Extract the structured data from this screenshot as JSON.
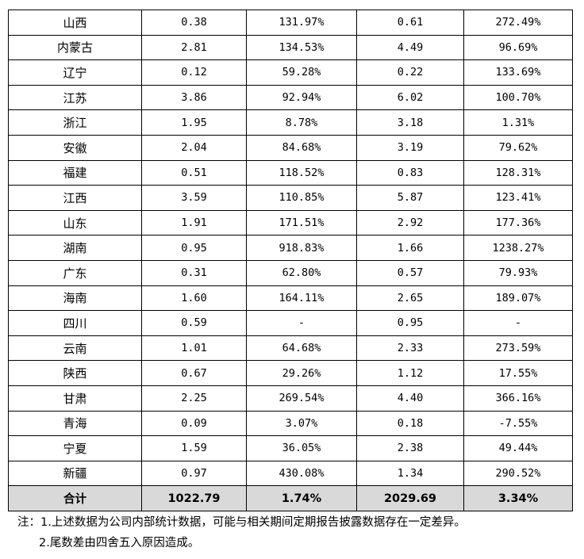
{
  "table": {
    "rows": [
      {
        "region": "山西",
        "c1": "0.38",
        "c2": "131.97%",
        "c3": "0.61",
        "c4": "272.49%"
      },
      {
        "region": "内蒙古",
        "c1": "2.81",
        "c2": "134.53%",
        "c3": "4.49",
        "c4": "96.69%"
      },
      {
        "region": "辽宁",
        "c1": "0.12",
        "c2": "59.28%",
        "c3": "0.22",
        "c4": "133.69%"
      },
      {
        "region": "江苏",
        "c1": "3.86",
        "c2": "92.94%",
        "c3": "6.02",
        "c4": "100.70%"
      },
      {
        "region": "浙江",
        "c1": "1.95",
        "c2": "8.78%",
        "c3": "3.18",
        "c4": "1.31%"
      },
      {
        "region": "安徽",
        "c1": "2.04",
        "c2": "84.68%",
        "c3": "3.19",
        "c4": "79.62%"
      },
      {
        "region": "福建",
        "c1": "0.51",
        "c2": "118.52%",
        "c3": "0.83",
        "c4": "128.31%"
      },
      {
        "region": "江西",
        "c1": "3.59",
        "c2": "110.85%",
        "c3": "5.87",
        "c4": "123.41%"
      },
      {
        "region": "山东",
        "c1": "1.91",
        "c2": "171.51%",
        "c3": "2.92",
        "c4": "177.36%"
      },
      {
        "region": "湖南",
        "c1": "0.95",
        "c2": "918.83%",
        "c3": "1.66",
        "c4": "1238.27%"
      },
      {
        "region": "广东",
        "c1": "0.31",
        "c2": "62.80%",
        "c3": "0.57",
        "c4": "79.93%"
      },
      {
        "region": "海南",
        "c1": "1.60",
        "c2": "164.11%",
        "c3": "2.65",
        "c4": "189.07%"
      },
      {
        "region": "四川",
        "c1": "0.59",
        "c2": "-",
        "c3": "0.95",
        "c4": "-"
      },
      {
        "region": "云南",
        "c1": "1.01",
        "c2": "64.68%",
        "c3": "2.33",
        "c4": "273.59%"
      },
      {
        "region": "陕西",
        "c1": "0.67",
        "c2": "29.26%",
        "c3": "1.12",
        "c4": "17.55%"
      },
      {
        "region": "甘肃",
        "c1": "2.25",
        "c2": "269.54%",
        "c3": "4.40",
        "c4": "366.16%"
      },
      {
        "region": "青海",
        "c1": "0.09",
        "c2": "3.07%",
        "c3": "0.18",
        "c4": "-7.55%"
      },
      {
        "region": "宁夏",
        "c1": "1.59",
        "c2": "36.05%",
        "c3": "2.38",
        "c4": "49.44%"
      },
      {
        "region": "新疆",
        "c1": "0.97",
        "c2": "430.08%",
        "c3": "1.34",
        "c4": "290.52%"
      }
    ],
    "total": {
      "region": "合计",
      "c1": "1022.79",
      "c2": "1.74%",
      "c3": "2029.69",
      "c4": "3.34%"
    },
    "total_background": "#d9d9d9"
  },
  "notes": {
    "line1": "注：1.上述数据为公司内部统计数据，可能与相关期间定期报告披露数据存在一定差异。",
    "line2": "2.尾数差由四舍五入原因造成。"
  }
}
